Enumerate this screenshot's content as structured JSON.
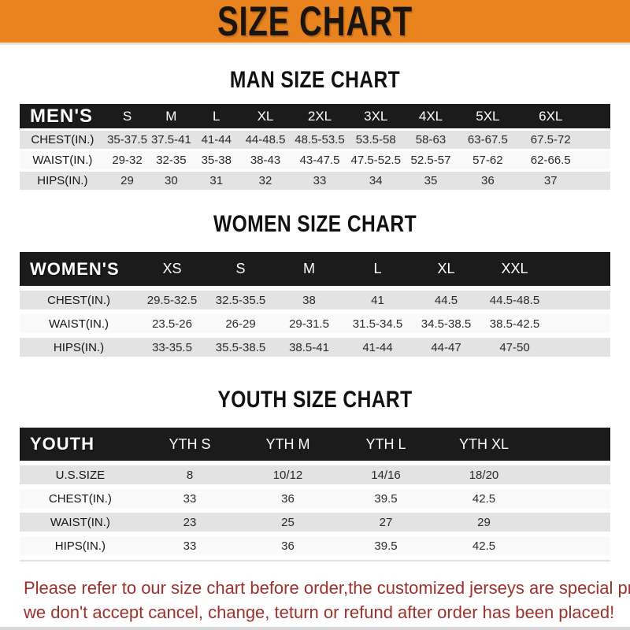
{
  "banner": {
    "title": "SIZE CHART"
  },
  "colors": {
    "banner_bg": "#e8831e",
    "header_bar_bg": "#1b1b1b",
    "row_gray": "#e3e3e3",
    "note_red": "#a1302a"
  },
  "sections": [
    {
      "heading": "MAN SIZE CHART",
      "table": {
        "label": "MEN'S",
        "columns": [
          "S",
          "M",
          "L",
          "XL",
          "2XL",
          "3XL",
          "4XL",
          "5XL",
          "6XL"
        ],
        "rows": [
          {
            "label": "CHEST(IN.)",
            "values": [
              "35-37.5",
              "37.5-41",
              "41-44",
              "44-48.5",
              "48.5-53.5",
              "53.5-58",
              "58-63",
              "63-67.5",
              "67.5-72"
            ]
          },
          {
            "label": "WAIST(IN.)",
            "values": [
              "29-32",
              "32-35",
              "35-38",
              "38-43",
              "43-47.5",
              "47.5-52.5",
              "52.5-57",
              "57-62",
              "62-66.5"
            ]
          },
          {
            "label": "HIPS(IN.)",
            "values": [
              "29",
              "30",
              "31",
              "32",
              "33",
              "34",
              "35",
              "36",
              "37"
            ]
          }
        ]
      }
    },
    {
      "heading": "WOMEN SIZE CHART",
      "table": {
        "label": "WOMEN'S",
        "columns": [
          "XS",
          "S",
          "M",
          "L",
          "XL",
          "XXL"
        ],
        "rows": [
          {
            "label": "CHEST(IN.)",
            "values": [
              "29.5-32.5",
              "32.5-35.5",
              "38",
              "41",
              "44.5",
              "44.5-48.5"
            ]
          },
          {
            "label": "WAIST(IN.)",
            "values": [
              "23.5-26",
              "26-29",
              "29-31.5",
              "31.5-34.5",
              "34.5-38.5",
              "38.5-42.5"
            ]
          },
          {
            "label": "HIPS(IN.)",
            "values": [
              "33-35.5",
              "35.5-38.5",
              "38.5-41",
              "41-44",
              "44-47",
              "47-50"
            ]
          }
        ]
      }
    },
    {
      "heading": "YOUTH SIZE CHART",
      "table": {
        "label": "YOUTH",
        "columns": [
          "YTH S",
          "YTH M",
          "YTH L",
          "YTH XL"
        ],
        "rows": [
          {
            "label": "U.S.SIZE",
            "values": [
              "8",
              "10/12",
              "14/16",
              "18/20"
            ]
          },
          {
            "label": "CHEST(IN.)",
            "values": [
              "33",
              "36",
              "39.5",
              "42.5"
            ]
          },
          {
            "label": "WAIST(IN.)",
            "values": [
              "23",
              "25",
              "27",
              "29"
            ]
          },
          {
            "label": "HIPS(IN.)",
            "values": [
              "33",
              "36",
              "39.5",
              "42.5"
            ]
          }
        ]
      }
    }
  ],
  "note": {
    "lines": [
      "Please refer to our size chart before order,the customized jerseys are special products,",
      "we don't accept cancel, change, teturn or refund after order has been placed!"
    ]
  }
}
